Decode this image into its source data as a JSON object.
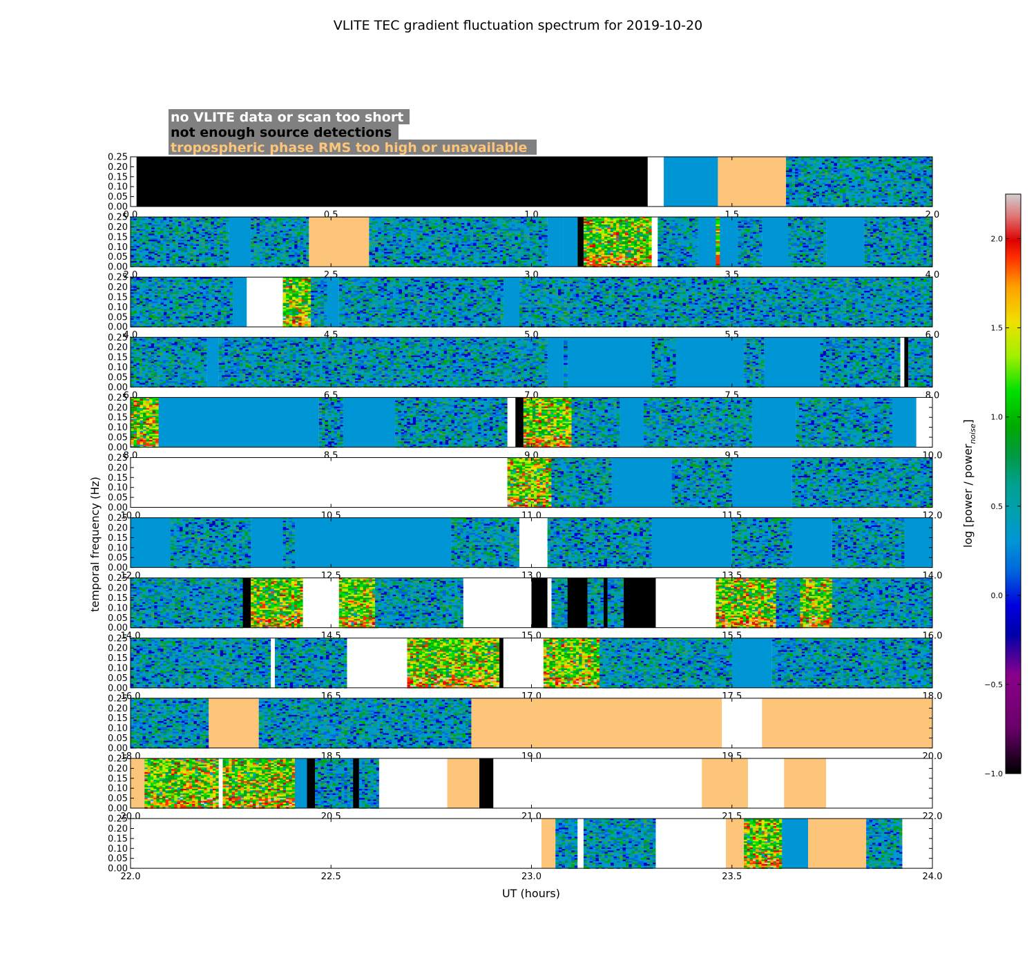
{
  "chart_data": {
    "type": "heatmap",
    "title": "VLITE TEC gradient fluctuation spectrum for 2019-10-20",
    "xlabel": "UT (hours)",
    "ylabel": "temporal frequency (Hz)",
    "colorbar": {
      "label": "log [power / power",
      "label_sub": "noise",
      "label_end": "]",
      "range": [
        -1.0,
        2.25
      ],
      "ticks": [
        -1.0,
        -0.5,
        0.0,
        0.5,
        1.0,
        1.5,
        2.0
      ],
      "tick_labels": [
        "−1.0",
        "−0.5",
        "0.0",
        "0.5",
        "1.0",
        "1.5",
        "2.0"
      ]
    },
    "y_ticks": [
      "0.00",
      "0.05",
      "0.10",
      "0.15",
      "0.20",
      "0.25"
    ],
    "ylim": [
      0,
      0.25
    ],
    "legend": [
      {
        "text": "no VLITE data or scan too short",
        "color": "#ffffff",
        "meaning": "nodata"
      },
      {
        "text": "not enough source detections",
        "color": "#000000",
        "meaning": "nodet"
      },
      {
        "text": "tropospheric phase RMS too high or unavailable",
        "color": "#fdc57a",
        "meaning": "tropo"
      }
    ],
    "legend_background": "#808080",
    "panels": [
      {
        "xlim": [
          0.0,
          2.0
        ],
        "x_ticks": [
          "0.0",
          "0.5",
          "1.0",
          "1.5",
          "2.0"
        ],
        "segments": [
          [
            0.0,
            0.015,
            "white"
          ],
          [
            0.015,
            1.29,
            "black"
          ],
          [
            1.29,
            1.33,
            "white"
          ],
          [
            1.33,
            1.465,
            "flat"
          ],
          [
            1.465,
            1.635,
            "tropo"
          ],
          [
            1.635,
            2.0,
            "noise"
          ]
        ]
      },
      {
        "xlim": [
          2.0,
          4.0
        ],
        "x_ticks": [
          "2.0",
          "2.5",
          "3.0",
          "3.5",
          "4.0"
        ],
        "segments": [
          [
            2.0,
            2.245,
            "noise"
          ],
          [
            2.245,
            2.3,
            "flat"
          ],
          [
            2.3,
            2.445,
            "noise"
          ],
          [
            2.445,
            2.595,
            "tropo"
          ],
          [
            2.595,
            3.04,
            "noise"
          ],
          [
            3.04,
            3.08,
            "flat"
          ],
          [
            3.08,
            3.115,
            "flat"
          ],
          [
            3.115,
            3.13,
            "black"
          ],
          [
            3.13,
            3.3,
            "hot"
          ],
          [
            3.3,
            3.315,
            "white"
          ],
          [
            3.315,
            3.415,
            "noise"
          ],
          [
            3.415,
            3.46,
            "flat"
          ],
          [
            3.46,
            3.47,
            "hot"
          ],
          [
            3.47,
            3.515,
            "flat"
          ],
          [
            3.515,
            3.575,
            "noise"
          ],
          [
            3.575,
            3.64,
            "flat"
          ],
          [
            3.64,
            3.735,
            "noise"
          ],
          [
            3.735,
            3.83,
            "flat"
          ],
          [
            3.83,
            4.0,
            "noise"
          ]
        ]
      },
      {
        "xlim": [
          4.0,
          6.0
        ],
        "x_ticks": [
          "4.0",
          "4.5",
          "5.0",
          "5.5",
          "6.0"
        ],
        "segments": [
          [
            4.0,
            4.255,
            "noise"
          ],
          [
            4.255,
            4.29,
            "flat"
          ],
          [
            4.29,
            4.38,
            "white"
          ],
          [
            4.38,
            4.45,
            "hot"
          ],
          [
            4.45,
            4.49,
            "noise"
          ],
          [
            4.49,
            4.52,
            "flat"
          ],
          [
            4.52,
            4.93,
            "noise"
          ],
          [
            4.93,
            4.97,
            "flat"
          ],
          [
            4.97,
            6.0,
            "noise"
          ]
        ]
      },
      {
        "xlim": [
          6.0,
          8.0
        ],
        "x_ticks": [
          "6.0",
          "6.5",
          "7.0",
          "7.5",
          "8.0"
        ],
        "segments": [
          [
            6.0,
            6.19,
            "noise"
          ],
          [
            6.19,
            6.22,
            "flat"
          ],
          [
            6.22,
            7.04,
            "noise"
          ],
          [
            7.04,
            7.08,
            "flat"
          ],
          [
            7.08,
            7.09,
            "noise"
          ],
          [
            7.09,
            7.3,
            "flat"
          ],
          [
            7.3,
            7.36,
            "noise"
          ],
          [
            7.36,
            7.53,
            "flat"
          ],
          [
            7.53,
            7.58,
            "noise"
          ],
          [
            7.58,
            7.72,
            "flat"
          ],
          [
            7.72,
            7.92,
            "noise"
          ],
          [
            7.92,
            7.93,
            "white"
          ],
          [
            7.93,
            7.94,
            "black"
          ],
          [
            7.94,
            8.0,
            "noise"
          ]
        ]
      },
      {
        "xlim": [
          8.0,
          10.0
        ],
        "x_ticks": [
          "8.0",
          "8.5",
          "9.0",
          "9.5",
          "10.0"
        ],
        "segments": [
          [
            8.0,
            8.07,
            "hot"
          ],
          [
            8.07,
            8.47,
            "flat"
          ],
          [
            8.47,
            8.53,
            "noise"
          ],
          [
            8.53,
            8.66,
            "flat"
          ],
          [
            8.66,
            8.94,
            "noise"
          ],
          [
            8.94,
            8.96,
            "white"
          ],
          [
            8.96,
            8.98,
            "black"
          ],
          [
            8.98,
            9.1,
            "hot"
          ],
          [
            9.1,
            9.22,
            "noise"
          ],
          [
            9.22,
            9.28,
            "flat"
          ],
          [
            9.28,
            9.55,
            "noise"
          ],
          [
            9.55,
            9.66,
            "flat"
          ],
          [
            9.66,
            9.9,
            "noise"
          ],
          [
            9.9,
            9.96,
            "flat"
          ],
          [
            9.96,
            10.0,
            "white"
          ]
        ]
      },
      {
        "xlim": [
          10.0,
          12.0
        ],
        "x_ticks": [
          "10.0",
          "10.5",
          "11.0",
          "11.5",
          "12.0"
        ],
        "segments": [
          [
            10.0,
            10.94,
            "white"
          ],
          [
            10.94,
            11.05,
            "hot"
          ],
          [
            11.05,
            11.2,
            "noise"
          ],
          [
            11.2,
            11.35,
            "flat"
          ],
          [
            11.35,
            11.5,
            "noise"
          ],
          [
            11.5,
            11.65,
            "flat"
          ],
          [
            11.65,
            12.0,
            "noise"
          ]
        ]
      },
      {
        "xlim": [
          12.0,
          14.0
        ],
        "x_ticks": [
          "12.0",
          "12.5",
          "13.0",
          "13.5",
          "14.0"
        ],
        "segments": [
          [
            12.0,
            12.1,
            "flat"
          ],
          [
            12.1,
            12.3,
            "noise"
          ],
          [
            12.3,
            12.38,
            "flat"
          ],
          [
            12.38,
            12.41,
            "noise"
          ],
          [
            12.41,
            12.8,
            "flat"
          ],
          [
            12.8,
            12.97,
            "noise"
          ],
          [
            12.97,
            13.04,
            "white"
          ],
          [
            13.04,
            13.3,
            "noise"
          ],
          [
            13.3,
            13.5,
            "flat"
          ],
          [
            13.5,
            13.65,
            "noise"
          ],
          [
            13.65,
            13.75,
            "flat"
          ],
          [
            13.75,
            13.93,
            "noise"
          ],
          [
            13.93,
            14.0,
            "flat"
          ]
        ]
      },
      {
        "xlim": [
          14.0,
          16.0
        ],
        "x_ticks": [
          "14.0",
          "14.5",
          "15.0",
          "15.5",
          "16.0"
        ],
        "segments": [
          [
            14.0,
            14.28,
            "noise"
          ],
          [
            14.28,
            14.3,
            "black"
          ],
          [
            14.3,
            14.43,
            "hot"
          ],
          [
            14.43,
            14.52,
            "white"
          ],
          [
            14.52,
            14.61,
            "hot"
          ],
          [
            14.61,
            14.83,
            "noise"
          ],
          [
            14.83,
            15.0,
            "white"
          ],
          [
            15.0,
            15.04,
            "black"
          ],
          [
            15.04,
            15.05,
            "white"
          ],
          [
            15.05,
            15.09,
            "noise"
          ],
          [
            15.09,
            15.14,
            "black"
          ],
          [
            15.14,
            15.18,
            "noise"
          ],
          [
            15.18,
            15.19,
            "black"
          ],
          [
            15.19,
            15.23,
            "noise"
          ],
          [
            15.23,
            15.31,
            "black"
          ],
          [
            15.31,
            15.46,
            "white"
          ],
          [
            15.46,
            15.61,
            "hot"
          ],
          [
            15.61,
            15.67,
            "noise"
          ],
          [
            15.67,
            15.75,
            "hot"
          ],
          [
            15.75,
            16.0,
            "noise"
          ]
        ]
      },
      {
        "xlim": [
          16.0,
          18.0
        ],
        "x_ticks": [
          "16.0",
          "16.5",
          "17.0",
          "17.5",
          "18.0"
        ],
        "segments": [
          [
            16.0,
            16.35,
            "noise"
          ],
          [
            16.35,
            16.36,
            "white"
          ],
          [
            16.36,
            16.54,
            "noise"
          ],
          [
            16.54,
            16.69,
            "white"
          ],
          [
            16.69,
            16.92,
            "hot"
          ],
          [
            16.92,
            16.93,
            "black"
          ],
          [
            16.93,
            17.03,
            "white"
          ],
          [
            17.03,
            17.17,
            "hot"
          ],
          [
            17.17,
            17.5,
            "noise"
          ],
          [
            17.5,
            17.6,
            "flat"
          ],
          [
            17.6,
            18.0,
            "noise"
          ]
        ]
      },
      {
        "xlim": [
          18.0,
          20.0
        ],
        "x_ticks": [
          "18.0",
          "18.5",
          "19.0",
          "19.5",
          "20.0"
        ],
        "segments": [
          [
            18.0,
            18.195,
            "noise"
          ],
          [
            18.195,
            18.32,
            "tropo"
          ],
          [
            18.32,
            18.85,
            "noise"
          ],
          [
            18.85,
            19.475,
            "tropo"
          ],
          [
            19.475,
            19.575,
            "white"
          ],
          [
            19.575,
            20.0,
            "tropo"
          ]
        ]
      },
      {
        "xlim": [
          20.0,
          22.0
        ],
        "x_ticks": [
          "20.0",
          "20.5",
          "21.0",
          "21.5",
          "22.0"
        ],
        "segments": [
          [
            20.0,
            20.035,
            "tropo"
          ],
          [
            20.035,
            20.22,
            "hot"
          ],
          [
            20.22,
            20.23,
            "white"
          ],
          [
            20.23,
            20.41,
            "hot"
          ],
          [
            20.41,
            20.44,
            "flat"
          ],
          [
            20.44,
            20.46,
            "black"
          ],
          [
            20.46,
            20.555,
            "noise"
          ],
          [
            20.555,
            20.57,
            "black"
          ],
          [
            20.57,
            20.62,
            "noise"
          ],
          [
            20.62,
            20.79,
            "white"
          ],
          [
            20.79,
            20.87,
            "tropo"
          ],
          [
            20.87,
            20.905,
            "black"
          ],
          [
            20.905,
            21.425,
            "white"
          ],
          [
            21.425,
            21.54,
            "tropo"
          ],
          [
            21.54,
            21.63,
            "white"
          ],
          [
            21.63,
            21.735,
            "tropo"
          ],
          [
            21.735,
            22.0,
            "white"
          ]
        ]
      },
      {
        "xlim": [
          22.0,
          24.0
        ],
        "x_ticks": [
          "22.0",
          "22.5",
          "23.0",
          "23.5",
          "24.0"
        ],
        "segments": [
          [
            22.0,
            23.025,
            "white"
          ],
          [
            23.025,
            23.06,
            "tropo"
          ],
          [
            23.06,
            23.115,
            "noise"
          ],
          [
            23.115,
            23.13,
            "white"
          ],
          [
            23.13,
            23.31,
            "noise"
          ],
          [
            23.31,
            23.485,
            "white"
          ],
          [
            23.485,
            23.53,
            "tropo"
          ],
          [
            23.53,
            23.625,
            "hot"
          ],
          [
            23.625,
            23.69,
            "flat"
          ],
          [
            23.69,
            23.835,
            "tropo"
          ],
          [
            23.835,
            23.925,
            "noise"
          ],
          [
            23.925,
            24.0,
            "white"
          ]
        ]
      }
    ]
  },
  "colors": {
    "flat": "#0096d6",
    "tropo": "#fdc57a",
    "nodet": "#000000",
    "nodata": "#ffffff"
  }
}
